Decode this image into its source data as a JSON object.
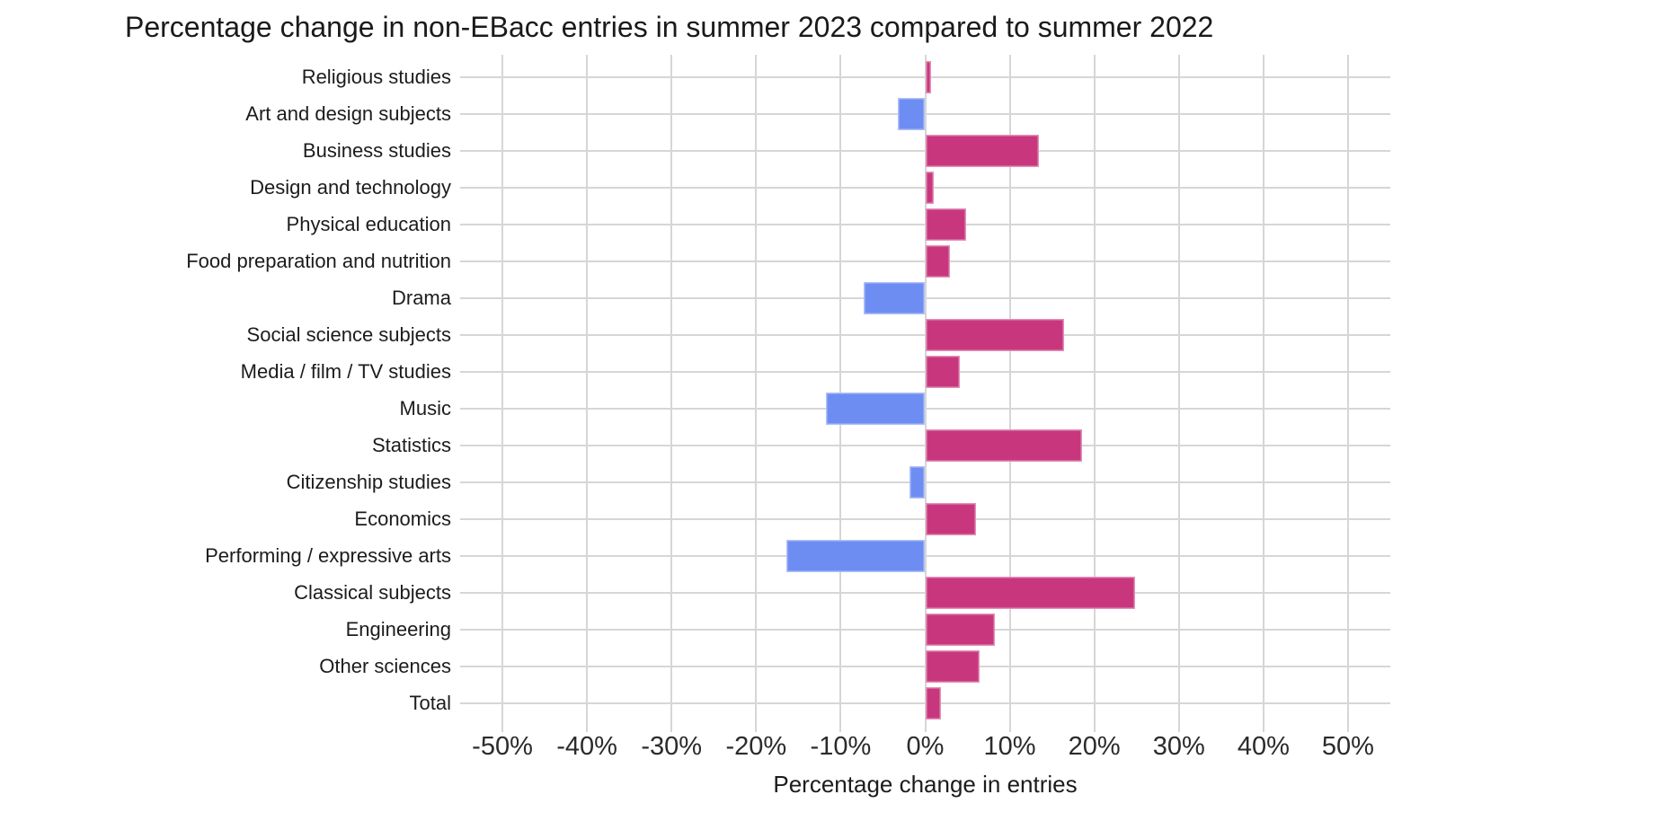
{
  "chart_data": {
    "type": "bar",
    "orientation": "horizontal",
    "title": "Percentage change in non-EBacc entries in summer 2023 compared to summer 2022",
    "xlabel": "Percentage change in entries",
    "ylabel": "",
    "unit": "%",
    "categories": [
      "Religious studies",
      "Art and design subjects",
      "Business studies",
      "Design and technology",
      "Physical education",
      "Food preparation and nutrition",
      "Drama",
      "Social science subjects",
      "Media / film / TV studies",
      "Music",
      "Statistics",
      "Citizenship studies",
      "Economics",
      "Performing / expressive arts",
      "Classical subjects",
      "Engineering",
      "Other sciences",
      "Total"
    ],
    "values": [
      0.7,
      -3.2,
      13.4,
      1.0,
      4.8,
      2.9,
      -7.3,
      16.4,
      4.1,
      -11.7,
      18.5,
      -1.9,
      6.0,
      -16.4,
      24.8,
      8.2,
      6.4,
      1.9
    ],
    "xlim": [
      -55,
      55
    ],
    "xticks": [
      -50,
      -40,
      -30,
      -20,
      -10,
      0,
      10,
      20,
      30,
      40,
      50
    ],
    "xtick_labels": [
      "-50%",
      "-40%",
      "-30%",
      "-20%",
      "-10%",
      "0%",
      "10%",
      "20%",
      "30%",
      "40%",
      "50%"
    ],
    "grid": true,
    "legend": false,
    "colors": {
      "positive": "#c8377d",
      "negative": "#6d8df3",
      "gridline": "#d6d6d6",
      "text": "#1c1c1c",
      "background": "#ffffff"
    }
  }
}
